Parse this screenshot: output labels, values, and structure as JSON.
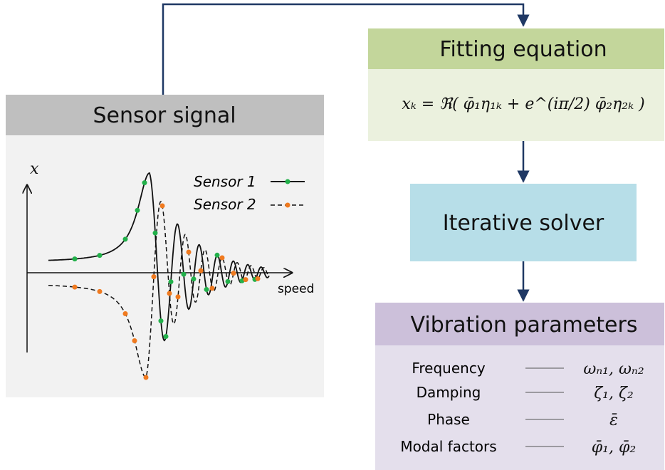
{
  "sensor_panel": {
    "title": "Sensor signal",
    "y_axis_label": "x",
    "x_axis_label": "speed",
    "legend": [
      "Sensor 1",
      "Sensor 2"
    ]
  },
  "fitting_panel": {
    "title": "Fitting equation",
    "equation": "xₖ = ℜ( φ̄₁η₁ₖ + e^(iπ/2) φ̄₂η₂ₖ )"
  },
  "solver_panel": {
    "title": "Iterative solver"
  },
  "parameters_panel": {
    "title": "Vibration parameters",
    "rows": [
      {
        "name": "Frequency",
        "symbol": "ωₙ₁, ωₙ₂"
      },
      {
        "name": "Damping",
        "symbol": "ζ₁, ζ₂"
      },
      {
        "name": "Phase",
        "symbol": "ε̄"
      },
      {
        "name": "Modal factors",
        "symbol": "φ̄₁, φ̄₂"
      }
    ]
  }
}
